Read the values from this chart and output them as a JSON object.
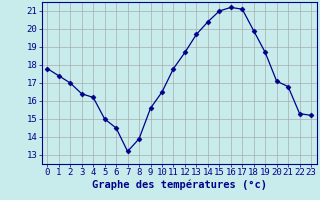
{
  "x": [
    0,
    1,
    2,
    3,
    4,
    5,
    6,
    7,
    8,
    9,
    10,
    11,
    12,
    13,
    14,
    15,
    16,
    17,
    18,
    19,
    20,
    21,
    22,
    23
  ],
  "y": [
    17.8,
    17.4,
    17.0,
    16.4,
    16.2,
    15.0,
    14.5,
    13.2,
    13.9,
    15.6,
    16.5,
    17.8,
    18.7,
    19.7,
    20.4,
    21.0,
    21.2,
    21.1,
    19.9,
    18.7,
    17.1,
    16.8,
    15.3,
    15.2
  ],
  "xlim": [
    -0.5,
    23.5
  ],
  "ylim": [
    12.5,
    21.5
  ],
  "yticks": [
    13,
    14,
    15,
    16,
    17,
    18,
    19,
    20,
    21
  ],
  "xticks": [
    0,
    1,
    2,
    3,
    4,
    5,
    6,
    7,
    8,
    9,
    10,
    11,
    12,
    13,
    14,
    15,
    16,
    17,
    18,
    19,
    20,
    21,
    22,
    23
  ],
  "xlabel": "Graphe des températures (°c)",
  "line_color": "#00008b",
  "marker": "D",
  "marker_size": 2.5,
  "bg_color": "#c8ecec",
  "grid_color": "#aaaaaa",
  "axis_color": "#00008b",
  "label_color": "#00008b",
  "tick_fontsize": 6.5,
  "xlabel_fontsize": 7.5
}
